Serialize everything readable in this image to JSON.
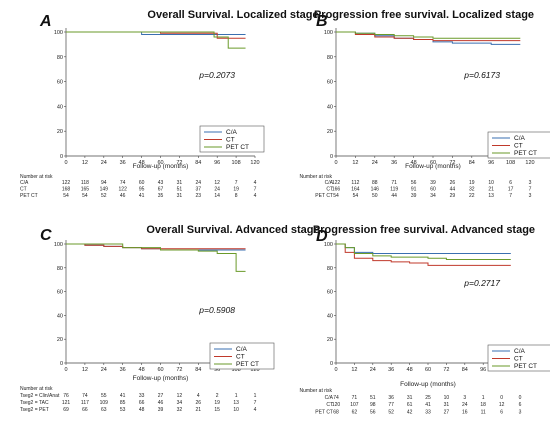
{
  "chart_data": [
    {
      "type": "line",
      "panel": "A",
      "title": "Overall Survival. Localized stage",
      "xlabel": "Follow-up (months)",
      "ylabel": "",
      "xlim": [
        0,
        120
      ],
      "ylim": [
        0,
        100
      ],
      "xticks": [
        0,
        12,
        24,
        36,
        48,
        60,
        72,
        84,
        96,
        108,
        120
      ],
      "yticks": [
        0,
        20,
        40,
        60,
        80,
        100
      ],
      "pvalue": "p=0.2073",
      "colors": {
        "C/A": "#3a6fb0",
        "CT": "#c0392b",
        "PET CT": "#6a9a2a"
      },
      "series": [
        {
          "name": "C/A",
          "x": [
            0,
            48,
            108,
            114
          ],
          "y": [
            100,
            98,
            98,
            98
          ]
        },
        {
          "name": "CT",
          "x": [
            0,
            60,
            96,
            114
          ],
          "y": [
            100,
            99,
            95,
            95
          ]
        },
        {
          "name": "PET CT",
          "x": [
            0,
            86,
            94,
            103,
            114
          ],
          "y": [
            100,
            100,
            96,
            87,
            87
          ]
        }
      ],
      "risk_table": {
        "header": "Number at risk",
        "rows": [
          {
            "label": "C/A",
            "values": [
              "122",
              "118",
              "94",
              "74",
              "60",
              "43",
              "31",
              "24",
              "12",
              "7",
              "4"
            ]
          },
          {
            "label": "CT",
            "values": [
              "168",
              "165",
              "149",
              "122",
              "95",
              "67",
              "51",
              "37",
              "24",
              "19",
              "7"
            ]
          },
          {
            "label": "PET CT",
            "values": [
              "54",
              "54",
              "52",
              "46",
              "41",
              "35",
              "31",
              "23",
              "14",
              "8",
              "4"
            ]
          }
        ]
      }
    },
    {
      "type": "line",
      "panel": "B",
      "title": "Progression free survival. Localized stage",
      "xlabel": "Follow-up (months)",
      "ylabel": "",
      "xlim": [
        0,
        120
      ],
      "ylim": [
        0,
        100
      ],
      "xticks": [
        0,
        12,
        24,
        36,
        48,
        60,
        72,
        84,
        96,
        108,
        120
      ],
      "yticks": [
        0,
        20,
        40,
        60,
        80,
        100
      ],
      "pvalue": "p=0.6173",
      "colors": {
        "C/A": "#3a6fb0",
        "CT": "#c0392b",
        "PET CT": "#6a9a2a"
      },
      "series": [
        {
          "name": "C/A",
          "x": [
            0,
            12,
            24,
            36,
            48,
            60,
            72,
            84,
            96,
            114
          ],
          "y": [
            100,
            99,
            97,
            95,
            94,
            92,
            91,
            91,
            90,
            90
          ]
        },
        {
          "name": "CT",
          "x": [
            0,
            12,
            24,
            36,
            48,
            60,
            72,
            84,
            96,
            114
          ],
          "y": [
            100,
            98,
            96,
            95,
            94,
            93,
            93,
            93,
            93,
            93
          ]
        },
        {
          "name": "PET CT",
          "x": [
            0,
            12,
            24,
            36,
            48,
            60,
            72,
            96,
            114
          ],
          "y": [
            100,
            99,
            98,
            97,
            96,
            95,
            95,
            95,
            95
          ]
        }
      ],
      "risk_table": {
        "header": "Number at risk",
        "rows": [
          {
            "label": "C/A",
            "values": [
              "122",
              "112",
              "88",
              "71",
              "56",
              "39",
              "26",
              "19",
              "10",
              "6",
              "3"
            ]
          },
          {
            "label": "CT",
            "values": [
              "166",
              "164",
              "146",
              "119",
              "91",
              "60",
              "44",
              "32",
              "21",
              "17",
              "7"
            ]
          },
          {
            "label": "PET CT",
            "values": [
              "54",
              "54",
              "50",
              "44",
              "39",
              "34",
              "29",
              "22",
              "13",
              "7",
              "3"
            ]
          }
        ]
      }
    },
    {
      "type": "line",
      "panel": "C",
      "title": "Overall Survival. Advanced stage",
      "xlabel": "Follow-up (months)",
      "ylabel": "",
      "xlim": [
        0,
        120
      ],
      "ylim": [
        0,
        100
      ],
      "xticks": [
        0,
        12,
        24,
        36,
        48,
        60,
        72,
        84,
        96,
        108,
        120
      ],
      "yticks": [
        0,
        20,
        40,
        60,
        80,
        100
      ],
      "pvalue": "p=0.5908",
      "colors": {
        "C/A": "#3a6fb0",
        "CT": "#c0392b",
        "PET CT": "#6a9a2a"
      },
      "series": [
        {
          "name": "C/A",
          "x": [
            0,
            12,
            24,
            36,
            48,
            60,
            72,
            96,
            114
          ],
          "y": [
            100,
            99,
            98,
            97,
            96,
            95,
            95,
            95,
            95
          ]
        },
        {
          "name": "CT",
          "x": [
            0,
            12,
            24,
            36,
            48,
            60,
            72,
            96,
            114
          ],
          "y": [
            100,
            99,
            98,
            97,
            96,
            96,
            96,
            96,
            96
          ]
        },
        {
          "name": "PET CT",
          "x": [
            0,
            12,
            36,
            60,
            84,
            96,
            108,
            114
          ],
          "y": [
            100,
            100,
            97,
            95,
            94,
            92,
            77,
            77
          ]
        }
      ],
      "risk_table": {
        "header": "Number at risk",
        "rows": [
          {
            "label": "Tseg2 = Clin/Anat",
            "values": [
              "76",
              "74",
              "55",
              "41",
              "33",
              "27",
              "12",
              "4",
              "2",
              "1",
              "1"
            ]
          },
          {
            "label": "Tseg2 = TAC",
            "values": [
              "121",
              "117",
              "109",
              "85",
              "66",
              "46",
              "34",
              "26",
              "19",
              "13",
              "7"
            ]
          },
          {
            "label": "Tseg2 = PET",
            "values": [
              "69",
              "66",
              "63",
              "53",
              "48",
              "39",
              "32",
              "21",
              "15",
              "10",
              "4"
            ]
          }
        ]
      }
    },
    {
      "type": "line",
      "panel": "D",
      "title": "Progression free survival. Advanced stage",
      "xlabel": "Follow-up (months)",
      "ylabel": "",
      "xlim": [
        0,
        120
      ],
      "ylim": [
        0,
        100
      ],
      "xticks": [
        0,
        12,
        24,
        36,
        48,
        60,
        72,
        84,
        96,
        108,
        120
      ],
      "yticks": [
        0,
        20,
        40,
        60,
        80,
        100
      ],
      "pvalue": "p=0.2717",
      "colors": {
        "C/A": "#3a6fb0",
        "CT": "#c0392b",
        "PET CT": "#6a9a2a"
      },
      "series": [
        {
          "name": "C/A",
          "x": [
            0,
            6,
            12,
            24,
            36,
            60,
            114
          ],
          "y": [
            100,
            97,
            93,
            92,
            92,
            92,
            92
          ]
        },
        {
          "name": "CT",
          "x": [
            0,
            6,
            12,
            24,
            36,
            48,
            60,
            114
          ],
          "y": [
            100,
            93,
            88,
            86,
            85,
            84,
            82,
            82
          ]
        },
        {
          "name": "PET CT",
          "x": [
            0,
            6,
            12,
            24,
            36,
            60,
            72,
            114
          ],
          "y": [
            100,
            97,
            92,
            90,
            89,
            88,
            87,
            87
          ]
        }
      ],
      "risk_table": {
        "header": "Number at risk",
        "rows": [
          {
            "label": "C/A",
            "values": [
              "74",
              "71",
              "51",
              "36",
              "31",
              "25",
              "10",
              "3",
              "1",
              "0",
              "0"
            ]
          },
          {
            "label": "CT",
            "values": [
              "120",
              "107",
              "98",
              "77",
              "61",
              "41",
              "31",
              "24",
              "18",
              "12",
              "6"
            ]
          },
          {
            "label": "PET CT",
            "values": [
              "68",
              "62",
              "56",
              "52",
              "42",
              "33",
              "27",
              "16",
              "11",
              "6",
              "3"
            ]
          }
        ]
      }
    }
  ]
}
